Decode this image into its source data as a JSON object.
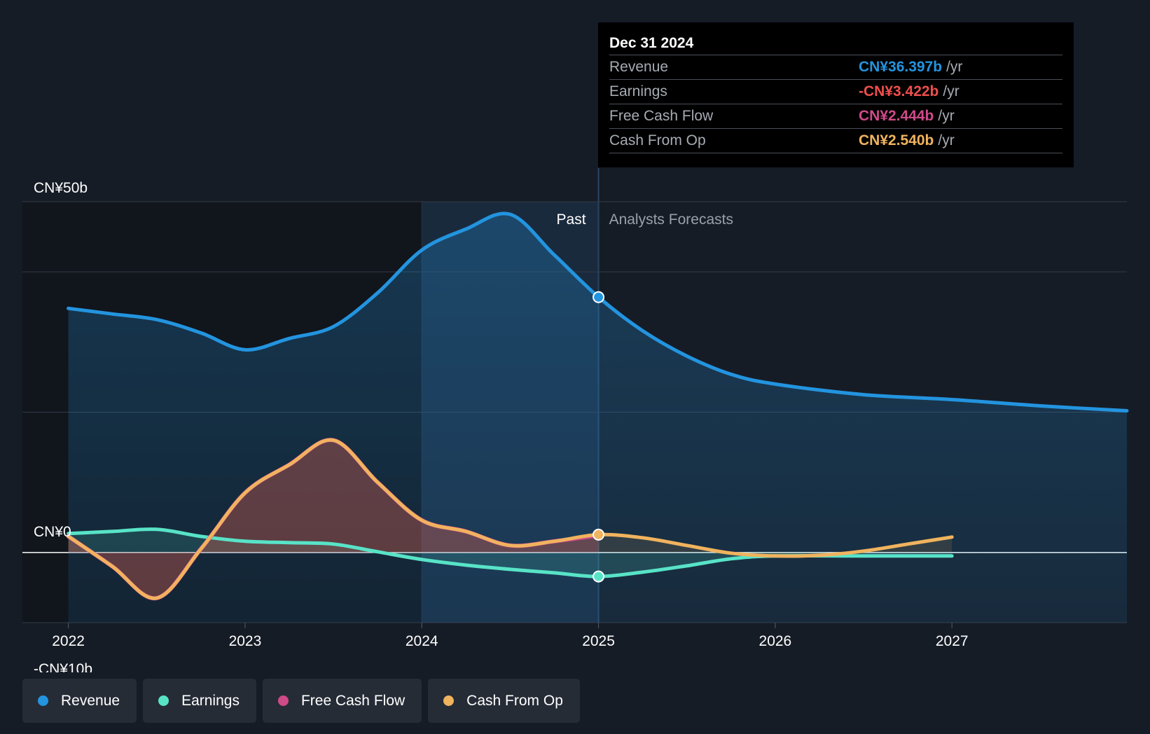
{
  "chart_data": {
    "type": "area",
    "y_labels": [
      "CN¥50b",
      "CN¥0",
      "-CN¥10b"
    ],
    "y_label_values": [
      50,
      0,
      -10
    ],
    "ylim": [
      -10,
      50
    ],
    "xlim": [
      2021.74,
      2027.99
    ],
    "x_ticks": [
      2022,
      2023,
      2024,
      2025,
      2026,
      2027
    ],
    "x_tick_labels": [
      "2022",
      "2023",
      "2024",
      "2025",
      "2026",
      "2027"
    ],
    "gridlines_y": [
      50,
      40,
      20,
      0,
      -10
    ],
    "regions": {
      "highlight_start": 2024.0,
      "past_end": 2025.0,
      "past_label": "Past",
      "forecast_label": "Analysts Forecasts"
    },
    "series": [
      {
        "name": "Revenue",
        "color": "#2394df",
        "points": [
          [
            2022.0,
            34.8
          ],
          [
            2022.25,
            34.0
          ],
          [
            2022.5,
            33.2
          ],
          [
            2022.75,
            31.3
          ],
          [
            2023.0,
            28.9
          ],
          [
            2023.25,
            30.5
          ],
          [
            2023.5,
            32.2
          ],
          [
            2023.75,
            37.0
          ],
          [
            2024.0,
            43.1
          ],
          [
            2024.25,
            46.1
          ],
          [
            2024.5,
            48.2
          ],
          [
            2024.75,
            42.4
          ],
          [
            2025.0,
            36.4
          ],
          [
            2025.25,
            31.6
          ],
          [
            2025.5,
            28.0
          ],
          [
            2025.75,
            25.4
          ],
          [
            2026.0,
            24.0
          ],
          [
            2026.5,
            22.5
          ],
          [
            2027.0,
            21.8
          ],
          [
            2027.5,
            20.9
          ],
          [
            2027.99,
            20.2
          ]
        ]
      },
      {
        "name": "Earnings",
        "color": "#58e3c7",
        "points": [
          [
            2022.0,
            2.7
          ],
          [
            2022.25,
            3.0
          ],
          [
            2022.5,
            3.3
          ],
          [
            2022.75,
            2.3
          ],
          [
            2023.0,
            1.6
          ],
          [
            2023.25,
            1.4
          ],
          [
            2023.5,
            1.2
          ],
          [
            2023.75,
            0.1
          ],
          [
            2024.0,
            -1.0
          ],
          [
            2024.25,
            -1.8
          ],
          [
            2024.5,
            -2.4
          ],
          [
            2024.75,
            -2.9
          ],
          [
            2025.0,
            -3.42
          ],
          [
            2025.25,
            -2.8
          ],
          [
            2025.5,
            -1.9
          ],
          [
            2025.75,
            -0.9
          ],
          [
            2026.0,
            -0.5
          ],
          [
            2026.5,
            -0.5
          ],
          [
            2027.0,
            -0.5
          ]
        ]
      },
      {
        "name": "Free Cash Flow",
        "color": "#d04a8a",
        "points": [
          [
            2022.0,
            2.3
          ],
          [
            2022.25,
            -2.0
          ],
          [
            2022.5,
            -6.5
          ],
          [
            2022.75,
            0.5
          ],
          [
            2023.0,
            8.5
          ],
          [
            2023.25,
            12.5
          ],
          [
            2023.5,
            16.0
          ],
          [
            2023.75,
            10.0
          ],
          [
            2024.0,
            4.6
          ],
          [
            2024.25,
            3.0
          ],
          [
            2024.5,
            1.0
          ],
          [
            2024.75,
            1.6
          ],
          [
            2025.0,
            2.444
          ]
        ]
      },
      {
        "name": "Cash From Op",
        "color": "#f0b35e",
        "points": [
          [
            2022.0,
            2.3
          ],
          [
            2022.25,
            -2.0
          ],
          [
            2022.5,
            -6.5
          ],
          [
            2022.75,
            0.5
          ],
          [
            2023.0,
            8.5
          ],
          [
            2023.25,
            12.5
          ],
          [
            2023.5,
            16.0
          ],
          [
            2023.75,
            10.0
          ],
          [
            2024.0,
            4.6
          ],
          [
            2024.25,
            3.0
          ],
          [
            2024.5,
            1.0
          ],
          [
            2024.75,
            1.6
          ],
          [
            2025.0,
            2.54
          ],
          [
            2025.25,
            2.1
          ],
          [
            2025.5,
            1.0
          ],
          [
            2025.75,
            -0.1
          ],
          [
            2026.0,
            -0.5
          ],
          [
            2026.25,
            -0.4
          ],
          [
            2026.5,
            0.2
          ],
          [
            2026.75,
            1.2
          ],
          [
            2027.0,
            2.2
          ]
        ]
      }
    ],
    "highlight_markers": [
      {
        "series": "Revenue",
        "x": 2025.0,
        "y": 36.4
      },
      {
        "series": "Earnings",
        "x": 2025.0,
        "y": -3.42
      },
      {
        "series": "Cash From Op",
        "x": 2025.0,
        "y": 2.54
      }
    ]
  },
  "tooltip": {
    "title": "Dec 31 2024",
    "rows": [
      {
        "label": "Revenue",
        "value": "CN¥36.397b",
        "unit": "/yr",
        "color": "#2394df"
      },
      {
        "label": "Earnings",
        "value": "-CN¥3.422b",
        "unit": "/yr",
        "color": "#ef4e4e"
      },
      {
        "label": "Free Cash Flow",
        "value": "CN¥2.444b",
        "unit": "/yr",
        "color": "#d04a8a"
      },
      {
        "label": "Cash From Op",
        "value": "CN¥2.540b",
        "unit": "/yr",
        "color": "#f0b35e"
      }
    ]
  },
  "legend": [
    {
      "label": "Revenue",
      "color": "#2394df"
    },
    {
      "label": "Earnings",
      "color": "#58e3c7"
    },
    {
      "label": "Free Cash Flow",
      "color": "#d04a8a"
    },
    {
      "label": "Cash From Op",
      "color": "#f0b35e"
    }
  ]
}
